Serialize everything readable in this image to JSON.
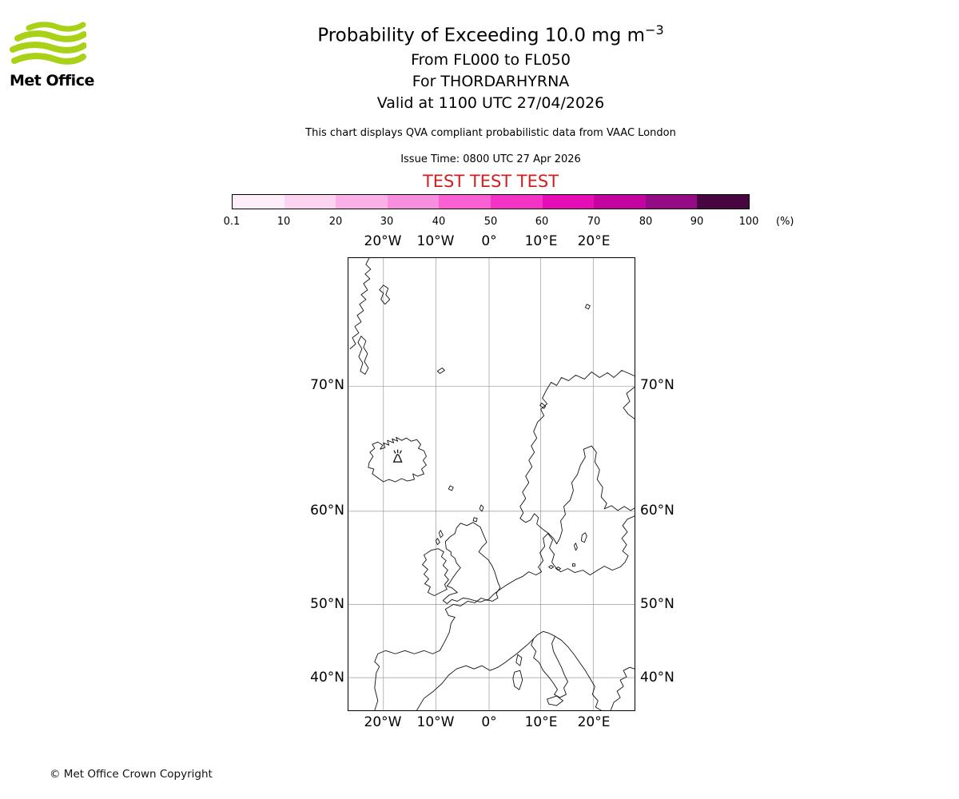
{
  "header": {
    "logo_text": "Met Office",
    "logo_color": "#a9d118",
    "title": "Probability of Exceeding 10.0 mg m",
    "title_sup": "−3",
    "subtitle_flight_levels": "From FL000 to FL050",
    "subtitle_volcano": "For THORDARHYRNA",
    "subtitle_valid": "Valid at 1100 UTC 27/04/2026",
    "info_line": "This chart displays QVA compliant probabilistic data from VAAC London",
    "issue_time": "Issue Time: 0800 UTC 27 Apr 2026",
    "test_banner": "TEST TEST TEST",
    "test_banner_color": "#d21e1e"
  },
  "colorbar": {
    "tick_labels": [
      "0.1",
      "10",
      "20",
      "30",
      "40",
      "50",
      "60",
      "70",
      "80",
      "90",
      "100"
    ],
    "unit_label": "(%)",
    "segment_colors": [
      "#fdeef9",
      "#fcd4f1",
      "#fbb1e8",
      "#fa8ede",
      "#f960d2",
      "#f233c5",
      "#e60cb6",
      "#c404a1",
      "#930c85",
      "#47063f"
    ]
  },
  "map": {
    "axis": {
      "top": [
        "20°W",
        "10°W",
        "0°",
        "10°E",
        "20°E"
      ],
      "bottom": [
        "20°W",
        "10°W",
        "0°",
        "10°E",
        "20°E"
      ],
      "left": [
        "70°N",
        "60°N",
        "50°N",
        "40°N"
      ],
      "right": [
        "70°N",
        "60°N",
        "50°N",
        "40°N"
      ]
    }
  },
  "footer": {
    "copyright": "© Met Office Crown Copyright"
  }
}
